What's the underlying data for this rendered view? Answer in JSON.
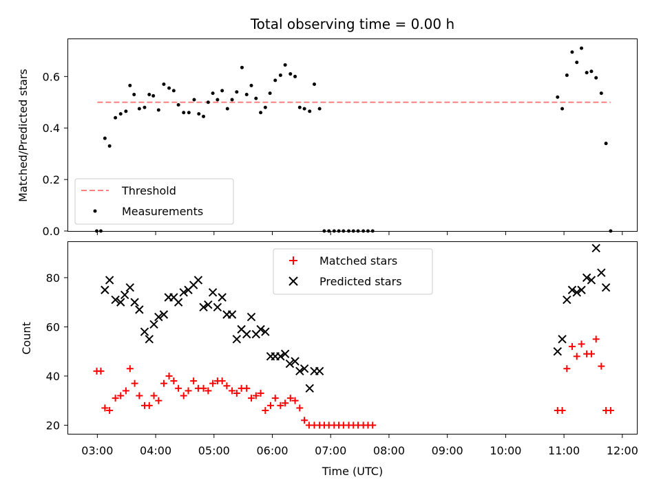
{
  "chart_data": {
    "type": "scatter",
    "title": "Total observing time = 0.00 h",
    "xlabel": "Time (UTC)",
    "x_range_hours": [
      2.5,
      12.25
    ],
    "x_tick_hours": [
      3,
      4,
      5,
      6,
      7,
      8,
      9,
      10,
      11,
      12
    ],
    "x_tick_labels": [
      "03:00",
      "04:00",
      "05:00",
      "06:00",
      "07:00",
      "08:00",
      "09:00",
      "10:00",
      "11:00",
      "12:00"
    ],
    "panels": [
      {
        "name": "ratio",
        "ylabel": "Matched/Predicted stars",
        "ylim": [
          0,
          0.745
        ],
        "yticks": [
          0.0,
          0.2,
          0.4,
          0.6
        ],
        "ytick_labels": [
          "0.0",
          "0.2",
          "0.4",
          "0.6"
        ],
        "legend_position": "lower-left",
        "threshold": {
          "label": "Threshold",
          "value": 0.5,
          "x_from": 3.0,
          "x_to": 11.8,
          "color": "#ff7f7f"
        },
        "measurements": {
          "label": "Measurements",
          "color": "#000000",
          "x": [
            2.99,
            3.06,
            3.13,
            3.21,
            3.31,
            3.4,
            3.49,
            3.56,
            3.63,
            3.72,
            3.81,
            3.89,
            3.96,
            4.05,
            4.14,
            4.23,
            4.31,
            4.39,
            4.48,
            4.57,
            4.66,
            4.74,
            4.82,
            4.9,
            4.98,
            5.06,
            5.14,
            5.23,
            5.31,
            5.39,
            5.48,
            5.56,
            5.64,
            5.72,
            5.8,
            5.88,
            5.96,
            6.05,
            6.14,
            6.22,
            6.31,
            6.39,
            6.47,
            6.55,
            6.64,
            6.72,
            6.81,
            6.89,
            6.97,
            7.06,
            7.14,
            7.22,
            7.31,
            7.39,
            7.47,
            7.56,
            7.64,
            7.72,
            10.89,
            10.97,
            11.05,
            11.14,
            11.22,
            11.3,
            11.39,
            11.47,
            11.55,
            11.64,
            11.72,
            11.8
          ],
          "y": [
            0.0,
            0.0,
            0.36,
            0.33,
            0.44,
            0.455,
            0.465,
            0.565,
            0.53,
            0.475,
            0.48,
            0.53,
            0.525,
            0.47,
            0.57,
            0.555,
            0.545,
            0.49,
            0.46,
            0.46,
            0.51,
            0.455,
            0.445,
            0.5,
            0.535,
            0.51,
            0.545,
            0.475,
            0.51,
            0.54,
            0.635,
            0.53,
            0.565,
            0.515,
            0.46,
            0.48,
            0.535,
            0.585,
            0.605,
            0.645,
            0.61,
            0.6,
            0.48,
            0.475,
            0.465,
            0.57,
            0.475,
            0.0,
            0.0,
            0.0,
            0.0,
            0.0,
            0.0,
            0.0,
            0.0,
            0.0,
            0.0,
            0.0,
            0.52,
            0.475,
            0.605,
            0.695,
            0.655,
            0.71,
            0.615,
            0.62,
            0.595,
            0.535,
            0.34,
            0.0
          ]
        }
      },
      {
        "name": "counts",
        "ylabel": "Count",
        "ylim": [
          16.5,
          94.5
        ],
        "yticks": [
          20,
          40,
          60,
          80
        ],
        "ytick_labels": [
          "20",
          "40",
          "60",
          "80"
        ],
        "legend_position": "upper-center",
        "series": [
          {
            "name": "Matched stars",
            "marker": "plus",
            "color": "#ff0000",
            "x": [
              2.99,
              3.06,
              3.13,
              3.21,
              3.31,
              3.4,
              3.49,
              3.56,
              3.64,
              3.72,
              3.81,
              3.89,
              3.97,
              4.05,
              4.14,
              4.23,
              4.31,
              4.39,
              4.48,
              4.56,
              4.65,
              4.73,
              4.82,
              4.9,
              4.98,
              5.06,
              5.14,
              5.22,
              5.31,
              5.39,
              5.47,
              5.56,
              5.64,
              5.72,
              5.8,
              5.88,
              5.97,
              6.05,
              6.14,
              6.22,
              6.31,
              6.39,
              6.47,
              6.55,
              6.63,
              6.72,
              6.81,
              6.89,
              6.97,
              7.06,
              7.14,
              7.22,
              7.31,
              7.39,
              7.47,
              7.56,
              7.64,
              7.72,
              10.89,
              10.97,
              11.05,
              11.14,
              11.22,
              11.3,
              11.39,
              11.47,
              11.55,
              11.64,
              11.72,
              11.8
            ],
            "y": [
              42,
              42,
              27,
              26,
              31,
              32,
              34,
              43,
              37,
              32,
              28,
              28,
              32,
              30,
              37,
              40,
              38,
              35,
              32,
              34,
              38,
              35,
              35,
              34,
              37,
              38,
              38,
              36,
              34,
              33,
              35,
              35,
              31,
              32,
              33,
              26,
              28,
              31,
              28,
              29,
              31,
              30,
              27,
              22,
              20,
              20,
              20,
              20,
              20,
              20,
              20,
              20,
              20,
              20,
              20,
              20,
              20,
              20,
              26,
              26,
              43,
              52,
              48,
              53,
              49,
              49,
              55,
              44,
              26,
              26
            ]
          },
          {
            "name": "Predicted stars",
            "marker": "x",
            "color": "#000000",
            "x": [
              3.13,
              3.21,
              3.31,
              3.4,
              3.47,
              3.56,
              3.64,
              3.72,
              3.81,
              3.89,
              3.97,
              4.05,
              4.14,
              4.22,
              4.31,
              4.39,
              4.48,
              4.56,
              4.65,
              4.73,
              4.82,
              4.9,
              4.98,
              5.06,
              5.14,
              5.22,
              5.31,
              5.39,
              5.47,
              5.56,
              5.64,
              5.72,
              5.8,
              5.88,
              5.97,
              6.05,
              6.14,
              6.22,
              6.3,
              6.39,
              6.47,
              6.55,
              6.64,
              6.72,
              6.81,
              10.89,
              10.97,
              11.05,
              11.14,
              11.22,
              11.3,
              11.39,
              11.47,
              11.55,
              11.64,
              11.72
            ],
            "y": [
              75,
              79,
              71,
              70,
              73,
              76,
              70,
              67,
              58,
              55,
              61,
              64,
              65,
              72,
              72,
              70,
              74,
              75,
              77,
              79,
              68,
              69,
              74,
              68,
              72,
              65,
              65,
              55,
              59,
              57,
              64,
              57,
              59,
              58,
              48,
              48,
              48,
              49,
              45,
              46,
              42,
              43,
              35,
              42,
              42,
              50,
              55,
              71,
              75,
              74,
              75,
              80,
              79,
              92,
              82,
              76
            ]
          }
        ]
      }
    ]
  }
}
